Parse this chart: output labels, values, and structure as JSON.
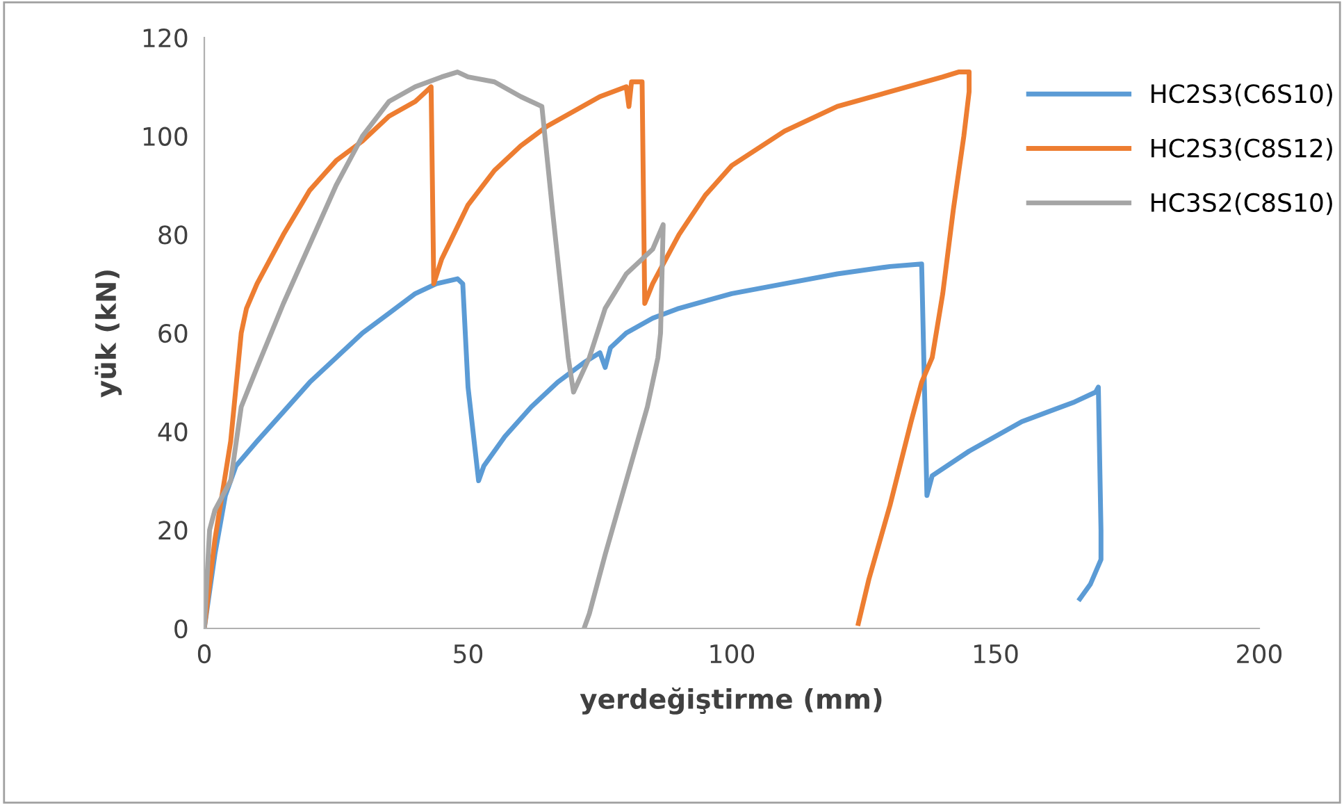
{
  "chart_data": {
    "type": "line",
    "xlabel": "yerdeğiştirme (mm)",
    "ylabel": "yük (kN)",
    "xlim": [
      0,
      200
    ],
    "xticks": [
      0,
      50,
      100,
      150,
      200
    ],
    "ylim": [
      0,
      120
    ],
    "yticks": [
      0,
      20,
      40,
      60,
      80,
      100,
      120
    ],
    "grid": false,
    "legend": "right",
    "marker": "none",
    "line_style": "solid",
    "series": [
      {
        "name": "HC2S3(C6S10)",
        "color": "#5b9bd5",
        "x": [
          0,
          2,
          4,
          6,
          10,
          15,
          20,
          25,
          30,
          35,
          40,
          44,
          48,
          49,
          50,
          52,
          53,
          57,
          62,
          67,
          72,
          75,
          76,
          77,
          80,
          85,
          90,
          100,
          110,
          120,
          130,
          136,
          137,
          138,
          145,
          155,
          165,
          169,
          169.5,
          170,
          170,
          168,
          166
        ],
        "values": [
          0,
          15,
          27,
          33,
          38,
          44,
          50,
          55,
          60,
          64,
          68,
          70,
          71,
          70,
          49,
          30,
          33,
          39,
          45,
          50,
          54,
          56,
          53,
          57,
          60,
          63,
          65,
          68,
          70,
          72,
          73.5,
          74,
          27,
          31,
          36,
          42,
          46,
          48,
          49,
          20,
          14,
          9,
          6
        ]
      },
      {
        "name": "HC2S3(C8S12)",
        "color": "#ed7d31",
        "x": [
          0,
          2,
          5,
          7,
          8,
          10,
          15,
          20,
          25,
          30,
          35,
          40,
          42,
          43,
          43.5,
          45,
          50,
          55,
          60,
          65,
          70,
          75,
          80,
          80.5,
          81,
          83,
          83.5,
          85,
          90,
          95,
          100,
          110,
          120,
          130,
          140,
          143,
          145,
          145,
          144,
          142,
          140,
          138,
          136,
          134,
          130,
          126,
          124
        ],
        "values": [
          0,
          18,
          38,
          60,
          65,
          70,
          80,
          89,
          95,
          99,
          104,
          107,
          109,
          110,
          70,
          75,
          86,
          93,
          98,
          102,
          105,
          108,
          110,
          106,
          111,
          111,
          66,
          70,
          80,
          88,
          94,
          101,
          106,
          109,
          112,
          113,
          113,
          109,
          100,
          85,
          68,
          55,
          50,
          42,
          25,
          10,
          1
        ]
      },
      {
        "name": "HC3S2(C8S10)",
        "color": "#a5a5a5",
        "x": [
          0,
          1,
          2,
          5,
          7,
          10,
          15,
          20,
          25,
          30,
          35,
          40,
          45,
          48,
          50,
          55,
          60,
          64,
          66,
          68,
          69,
          70,
          73,
          76,
          80,
          85,
          87,
          86.5,
          86,
          84,
          80,
          76,
          73,
          72
        ],
        "values": [
          0,
          20,
          24,
          30,
          45,
          53,
          66,
          78,
          90,
          100,
          107,
          110,
          112,
          113,
          112,
          111,
          108,
          106,
          85,
          65,
          55,
          48,
          55,
          65,
          72,
          77,
          82,
          60,
          55,
          45,
          30,
          15,
          3,
          0
        ]
      }
    ]
  }
}
